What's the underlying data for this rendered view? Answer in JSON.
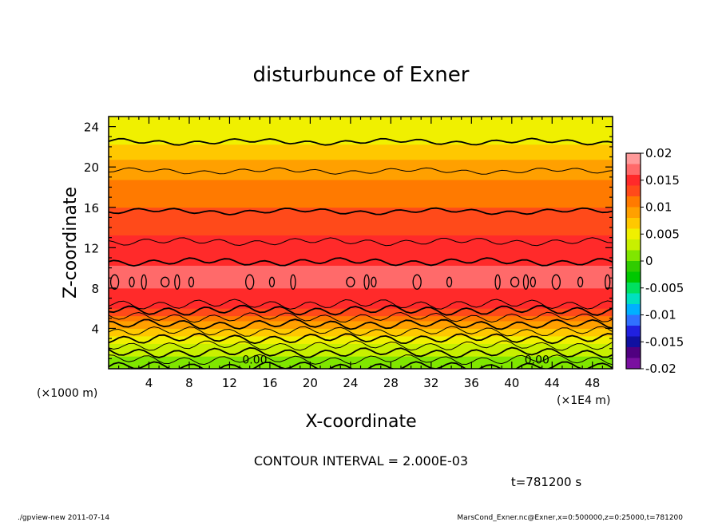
{
  "chart_data": {
    "type": "heatmap",
    "title": "disturbunce of Exner",
    "xlabel": "X-coordinate",
    "ylabel": "Z-coordinate",
    "x_unit": "(×1E4 m)",
    "y_unit": "(×1000 m)",
    "xlim": [
      0,
      50
    ],
    "ylim": [
      0,
      25
    ],
    "x_ticks": [
      "4",
      "8",
      "12",
      "16",
      "20",
      "24",
      "28",
      "32",
      "36",
      "40",
      "44",
      "48"
    ],
    "y_ticks": [
      "4",
      "8",
      "12",
      "16",
      "20",
      "24"
    ],
    "colorbar": {
      "min": -0.02,
      "max": 0.02,
      "labels": [
        "0.02",
        "0.015",
        "0.01",
        "0.005",
        "0",
        "-0.005",
        "-0.01",
        "-0.015",
        "-0.02"
      ],
      "colors": [
        "#ff9a9a",
        "#ff6a6a",
        "#ff2a2a",
        "#ff4a1a",
        "#ff7a00",
        "#ffa000",
        "#ffc800",
        "#f0f000",
        "#c8f000",
        "#80e600",
        "#30cc00",
        "#00c800",
        "#00e060",
        "#00e0c0",
        "#00b0ff",
        "#3070ff",
        "#2020e0",
        "#1010a0",
        "#500080",
        "#7a10a0"
      ]
    },
    "profile_z": [
      0,
      2,
      4,
      6,
      8,
      9.5,
      12,
      16,
      20,
      23,
      25
    ],
    "profile_value": [
      0.0,
      0.003,
      0.008,
      0.014,
      0.016,
      0.0165,
      0.015,
      0.012,
      0.009,
      0.005,
      0.004
    ],
    "contour_labels": [
      {
        "x": 14.5,
        "z": 0.5,
        "text": "0.00"
      },
      {
        "x": 42.5,
        "z": 0.5,
        "text": "0.00"
      }
    ]
  },
  "contour_interval": "CONTOUR INTERVAL = 2.000E-03",
  "time_label": "t=781200 s",
  "footer_left": "./gpview-new   2011-07-14",
  "footer_right": "MarsCond_Exner.nc@Exner,x=0:500000,z=0:25000,t=781200"
}
